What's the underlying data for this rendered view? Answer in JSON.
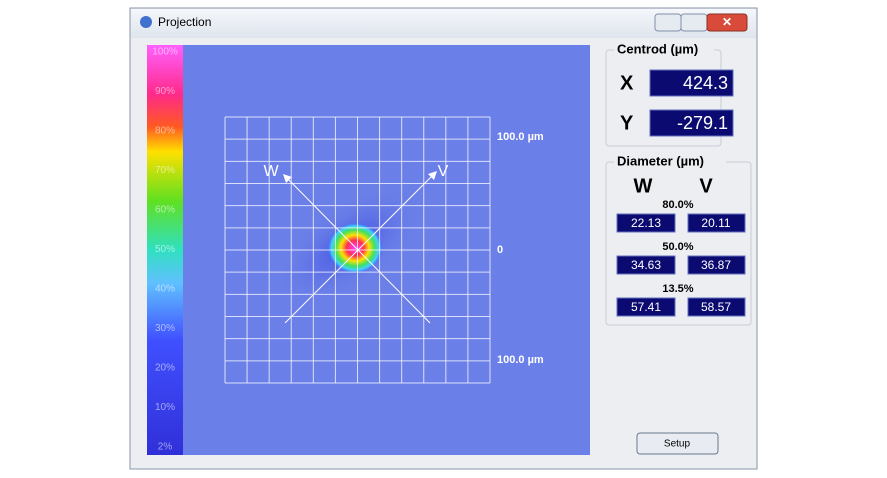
{
  "window": {
    "title": "Projection"
  },
  "colorbar": {
    "labels": [
      "100%",
      "90%",
      "80%",
      "70%",
      "60%",
      "50%",
      "40%",
      "30%",
      "20%",
      "10%",
      "2%"
    ]
  },
  "plot": {
    "scale_top": "100.0 µm",
    "scale_center": "0",
    "scale_bottom": "100.0 µm",
    "axis_w": "W",
    "axis_v": "V"
  },
  "centroid": {
    "title": "Centrod (µm)",
    "x_label": "X",
    "x_value": "424.3",
    "y_label": "Y",
    "y_value": "-279.1"
  },
  "diameter": {
    "title": "Diameter (µm)",
    "col_w": "W",
    "col_v": "V",
    "rows": [
      {
        "level": "80.0%",
        "w": "22.13",
        "v": "20.11"
      },
      {
        "level": "50.0%",
        "w": "34.63",
        "v": "36.87"
      },
      {
        "level": "13.5%",
        "w": "57.41",
        "v": "58.57"
      }
    ]
  },
  "setup_button": "Setup"
}
